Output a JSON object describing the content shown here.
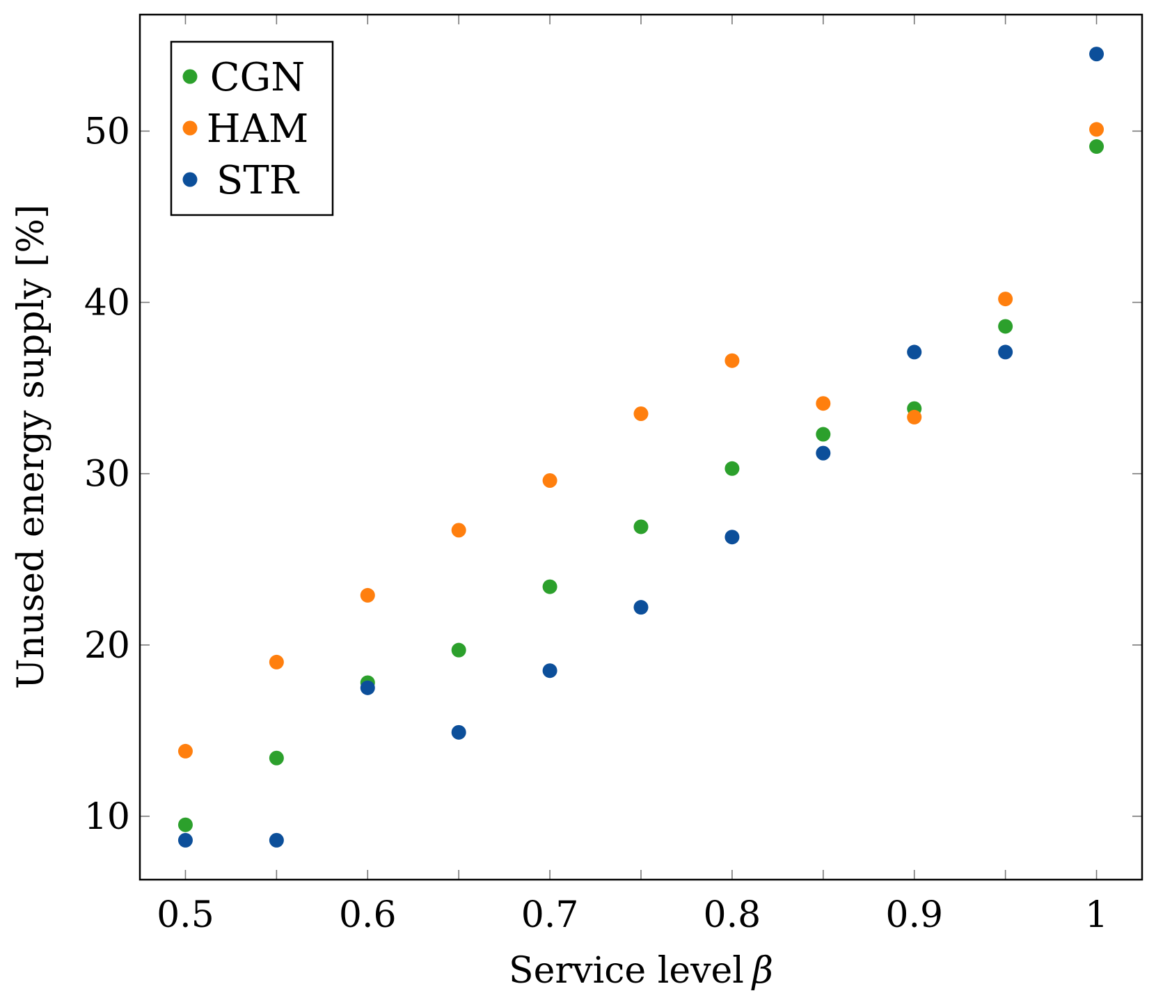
{
  "chart_data": {
    "type": "scatter",
    "title": "",
    "xlabel": "Service level",
    "xlabel_symbol": "β",
    "ylabel": "Unused energy supply [%]",
    "xlim": [
      0.475,
      1.025
    ],
    "ylim": [
      6.3,
      56.8
    ],
    "x_ticks": [
      0.5,
      0.6,
      0.7,
      0.8,
      0.9,
      1.0
    ],
    "x_tick_labels": [
      "0.5",
      "0.6",
      "0.7",
      "0.8",
      "0.9",
      "1"
    ],
    "x_minor_ticks": [
      0.55,
      0.65,
      0.75,
      0.85,
      0.95
    ],
    "y_ticks": [
      10,
      20,
      30,
      40,
      50
    ],
    "y_tick_labels": [
      "10",
      "20",
      "30",
      "40",
      "50"
    ],
    "grid": false,
    "legend_position": "top-left",
    "x": [
      0.5,
      0.55,
      0.6,
      0.65,
      0.7,
      0.75,
      0.8,
      0.85,
      0.9,
      0.95,
      1.0
    ],
    "series": [
      {
        "name": "CGN",
        "color": "#2ca02c",
        "values": [
          9.5,
          13.4,
          17.8,
          19.7,
          23.4,
          26.9,
          30.3,
          32.3,
          33.8,
          38.6,
          49.1
        ]
      },
      {
        "name": "HAM",
        "color": "#ff7f0e",
        "values": [
          13.8,
          19.0,
          22.9,
          26.7,
          29.6,
          33.5,
          36.6,
          34.1,
          33.3,
          40.2,
          50.1
        ]
      },
      {
        "name": "STR",
        "color": "#0c4f9a",
        "values": [
          8.6,
          8.6,
          17.5,
          14.9,
          18.5,
          22.2,
          26.3,
          31.2,
          37.1,
          37.1,
          54.5
        ]
      }
    ]
  }
}
